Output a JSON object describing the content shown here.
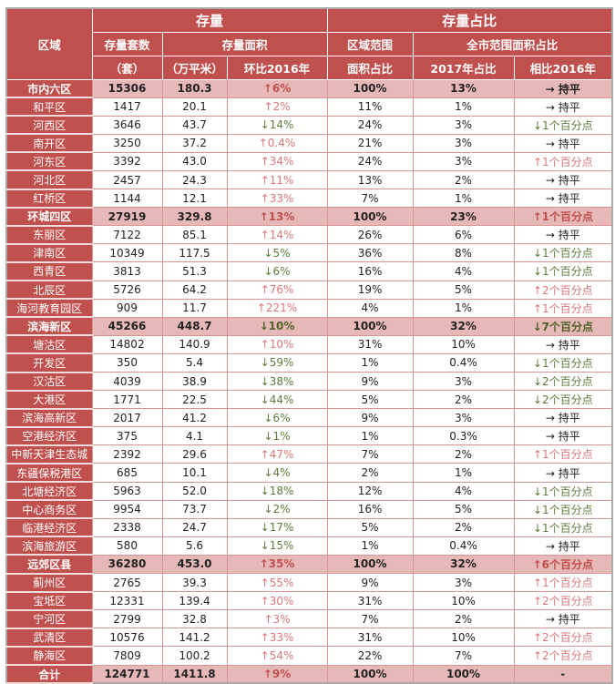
{
  "colors": {
    "header": "#c0504d",
    "subtotal": "#e6b8b7",
    "up": "#d9777a",
    "down": "#5f7a3c"
  },
  "header": {
    "region": "区域",
    "stock": "存量",
    "stock_share": "存量占比",
    "units": "存量套数",
    "units_unit": "（套）",
    "area": "存量面积",
    "area_unit": "（万平米）",
    "area_change": "环比2016年",
    "region_share": "区域范围",
    "region_share2": "面积占比",
    "city_share": "全市范围面积占比",
    "share2017": "2017年占比",
    "vs2016": "相比2016年"
  },
  "rows": [
    [
      "市内六区",
      "15306",
      "180.3",
      "↑6%",
      "100%",
      "13%",
      "→ 持平",
      1
    ],
    [
      "和平区",
      "1417",
      "20.1",
      "↑2%",
      "11%",
      "1%",
      "→ 持平",
      0
    ],
    [
      "河西区",
      "3646",
      "43.7",
      "↓14%",
      "24%",
      "3%",
      "↓1个百分点",
      0
    ],
    [
      "南开区",
      "3250",
      "37.2",
      "↑0.4%",
      "21%",
      "3%",
      "→ 持平",
      0
    ],
    [
      "河东区",
      "3392",
      "43.0",
      "↑34%",
      "24%",
      "3%",
      "↑1个百分点",
      0
    ],
    [
      "河北区",
      "2457",
      "24.3",
      "↑11%",
      "13%",
      "2%",
      "→ 持平",
      0
    ],
    [
      "红桥区",
      "1144",
      "12.1",
      "↑33%",
      "7%",
      "1%",
      "→ 持平",
      0
    ],
    [
      "环城四区",
      "27919",
      "329.8",
      "↑13%",
      "100%",
      "23%",
      "↑1个百分点",
      1
    ],
    [
      "东丽区",
      "7122",
      "85.1",
      "↑14%",
      "26%",
      "6%",
      "→ 持平",
      0
    ],
    [
      "津南区",
      "10349",
      "117.5",
      "↓5%",
      "36%",
      "8%",
      "↓1个百分点",
      0
    ],
    [
      "西青区",
      "3813",
      "51.3",
      "↓6%",
      "16%",
      "4%",
      "↓1个百分点",
      0
    ],
    [
      "北辰区",
      "5726",
      "64.2",
      "↑76%",
      "19%",
      "5%",
      "↑2个百分点",
      0
    ],
    [
      "海河教育园区",
      "909",
      "11.7",
      "↑221%",
      "4%",
      "1%",
      "↑1个百分点",
      0
    ],
    [
      "滨海新区",
      "45266",
      "448.7",
      "↓10%",
      "100%",
      "32%",
      "↓7个百分点",
      1
    ],
    [
      "塘沽区",
      "14802",
      "140.9",
      "↑10%",
      "31%",
      "10%",
      "→ 持平",
      0
    ],
    [
      "开发区",
      "350",
      "5.4",
      "↓59%",
      "1%",
      "0.4%",
      "↓1个百分点",
      0
    ],
    [
      "汉沽区",
      "4039",
      "38.9",
      "↓38%",
      "9%",
      "3%",
      "↓2个百分点",
      0
    ],
    [
      "大港区",
      "1771",
      "22.5",
      "↓44%",
      "5%",
      "2%",
      "↓2个百分点",
      0
    ],
    [
      "滨海高新区",
      "2017",
      "41.2",
      "↓6%",
      "9%",
      "3%",
      "→ 持平",
      0
    ],
    [
      "空港经济区",
      "375",
      "4.1",
      "↓1%",
      "1%",
      "0.3%",
      "→ 持平",
      0
    ],
    [
      "中新天津生态城",
      "2392",
      "29.6",
      "↑47%",
      "7%",
      "2%",
      "↑1个百分点",
      0
    ],
    [
      "东疆保税港区",
      "685",
      "10.1",
      "↓4%",
      "2%",
      "1%",
      "→ 持平",
      0
    ],
    [
      "北塘经济区",
      "5963",
      "52.0",
      "↓18%",
      "12%",
      "4%",
      "↓1个百分点",
      0
    ],
    [
      "中心商务区",
      "9954",
      "73.7",
      "↓2%",
      "16%",
      "5%",
      "↓1个百分点",
      0
    ],
    [
      "临港经济区",
      "2338",
      "24.7",
      "↓17%",
      "5%",
      "2%",
      "↓1个百分点",
      0
    ],
    [
      "滨海旅游区",
      "580",
      "5.6",
      "↓15%",
      "1%",
      "0.4%",
      "→ 持平",
      0
    ],
    [
      "远郊区县",
      "36280",
      "453.0",
      "↑35%",
      "100%",
      "32%",
      "↑6个百分点",
      1
    ],
    [
      "蓟州区",
      "2765",
      "39.3",
      "↑55%",
      "9%",
      "3%",
      "↑1个百分点",
      0
    ],
    [
      "宝坻区",
      "12331",
      "139.4",
      "↑30%",
      "31%",
      "10%",
      "↑2个百分点",
      0
    ],
    [
      "宁河区",
      "2799",
      "32.8",
      "↑3%",
      "7%",
      "2%",
      "→ 持平",
      0
    ],
    [
      "武清区",
      "10576",
      "141.2",
      "↑33%",
      "31%",
      "10%",
      "↑2个百分点",
      0
    ],
    [
      "静海区",
      "7809",
      "100.2",
      "↑54%",
      "22%",
      "7%",
      "↑2个百分点",
      0
    ],
    [
      "合计",
      "124771",
      "1411.8",
      "↑9%",
      "100%",
      "100%",
      "-",
      1
    ]
  ]
}
